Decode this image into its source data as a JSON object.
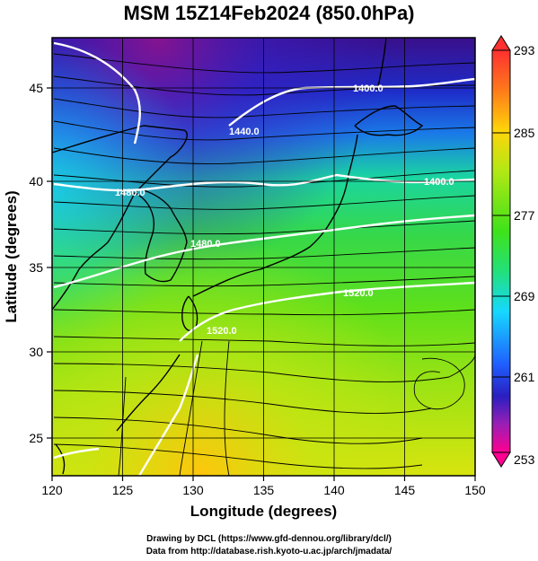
{
  "title": "MSM 15Z14Feb2024 (850.0hPa)",
  "axes": {
    "xlabel": "Longitude (degrees)",
    "ylabel": "Latitude  (degrees)",
    "x_ticks": [
      "120",
      "125",
      "130",
      "135",
      "140",
      "145",
      "150"
    ],
    "y_ticks": [
      "25",
      "30",
      "35",
      "40",
      "45"
    ],
    "xlim": [
      120,
      150
    ],
    "ylim": [
      22.4,
      47.6
    ]
  },
  "colorbar": {
    "labels": [
      "293",
      "285",
      "277",
      "269",
      "261",
      "253"
    ],
    "range": [
      253,
      293
    ],
    "colors": [
      "#ff0090",
      "#9a1fb5",
      "#2a1fc0",
      "#1f5fff",
      "#16d8ff",
      "#22e07a",
      "#3fe21a",
      "#b2e814",
      "#ffd50a",
      "#ff7a1a",
      "#ff3030"
    ]
  },
  "contours": [
    {
      "label": "1400.0"
    },
    {
      "label": "1440.0"
    },
    {
      "label": "1480.0"
    },
    {
      "label": "1400.0"
    },
    {
      "label": "1480.0"
    },
    {
      "label": "1520.0"
    },
    {
      "label": "1520.0"
    }
  ],
  "credits": {
    "line1": "Drawing by DCL (https://www.gfd-dennou.org/library/dcl/)",
    "line2": "Data from http://database.rish.kyoto-u.ac.jp/arch/jmadata/"
  }
}
